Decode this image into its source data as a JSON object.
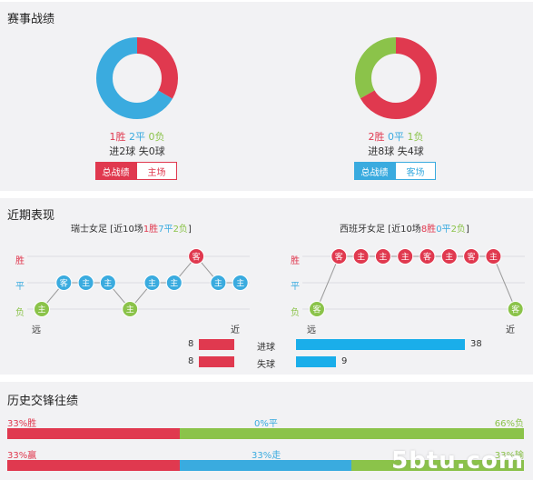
{
  "record": {
    "title": "赛事战绩",
    "left": {
      "wins": "1胜",
      "draws": "2平",
      "losses": "0负",
      "goals": "进2球",
      "conceded": "失0球",
      "tab_active": "总战绩",
      "tab_inactive": "主场",
      "slices": [
        {
          "label": "胜",
          "value": 1,
          "color": "#e0394f"
        },
        {
          "label": "平",
          "value": 2,
          "color": "#3aabdf"
        },
        {
          "label": "负",
          "value": 0,
          "color": "#8bc34a"
        }
      ]
    },
    "right": {
      "wins": "2胜",
      "draws": "0平",
      "losses": "1负",
      "goals": "进8球",
      "conceded": "失4球",
      "tab_active": "总战绩",
      "tab_inactive": "客场",
      "slices": [
        {
          "label": "胜",
          "value": 2,
          "color": "#e0394f"
        },
        {
          "label": "平",
          "value": 0,
          "color": "#3aabdf"
        },
        {
          "label": "负",
          "value": 1,
          "color": "#8bc34a"
        }
      ]
    }
  },
  "recent": {
    "title": "近期表现",
    "y_labels": {
      "win": "胜",
      "draw": "平",
      "loss": "负"
    },
    "x_labels": {
      "far": "远",
      "near": "近"
    },
    "left": {
      "team": "瑞士女足",
      "summary_prefix": " [近10场",
      "wins": "1胜",
      "draws": "7平",
      "losses": "2负",
      "summary_suffix": "]",
      "results": [
        {
          "r": "L",
          "v": "主"
        },
        {
          "r": "D",
          "v": "客"
        },
        {
          "r": "D",
          "v": "主"
        },
        {
          "r": "D",
          "v": "主"
        },
        {
          "r": "L",
          "v": "主"
        },
        {
          "r": "D",
          "v": "主"
        },
        {
          "r": "D",
          "v": "主"
        },
        {
          "r": "W",
          "v": "客"
        },
        {
          "r": "D",
          "v": "主"
        },
        {
          "r": "D",
          "v": "主"
        }
      ]
    },
    "right": {
      "team": "西班牙女足",
      "summary_prefix": " [近10场",
      "wins": "8胜",
      "draws": "0平",
      "losses": "2负",
      "summary_suffix": "]",
      "results": [
        {
          "r": "L",
          "v": "客"
        },
        {
          "r": "W",
          "v": "客"
        },
        {
          "r": "W",
          "v": "主"
        },
        {
          "r": "W",
          "v": "主"
        },
        {
          "r": "W",
          "v": "主"
        },
        {
          "r": "W",
          "v": "客"
        },
        {
          "r": "W",
          "v": "主"
        },
        {
          "r": "W",
          "v": "客"
        },
        {
          "r": "W",
          "v": "主"
        },
        {
          "r": "L",
          "v": "客"
        }
      ]
    },
    "goals": {
      "scored_label": "进球",
      "conceded_label": "失球",
      "left_scored": 8,
      "left_conceded": 8,
      "right_scored": 38,
      "right_conceded": 9
    }
  },
  "h2h": {
    "title": "历史交锋往绩",
    "row1": {
      "win_pct": 33,
      "draw_pct": 0,
      "loss_pct": 66,
      "win_label": "33%胜",
      "draw_label": "0%平",
      "loss_label": "66%负"
    },
    "row2": {
      "win_pct": 33,
      "draw_pct": 33,
      "loss_pct": 33,
      "win_label": "33%赢",
      "draw_label": "33%走",
      "loss_label": "33%输"
    }
  },
  "watermark": "5btu.com",
  "colors": {
    "red": "#e0394f",
    "blue": "#3aabdf",
    "green": "#8bc34a",
    "goal_blue": "#1aaeea"
  }
}
